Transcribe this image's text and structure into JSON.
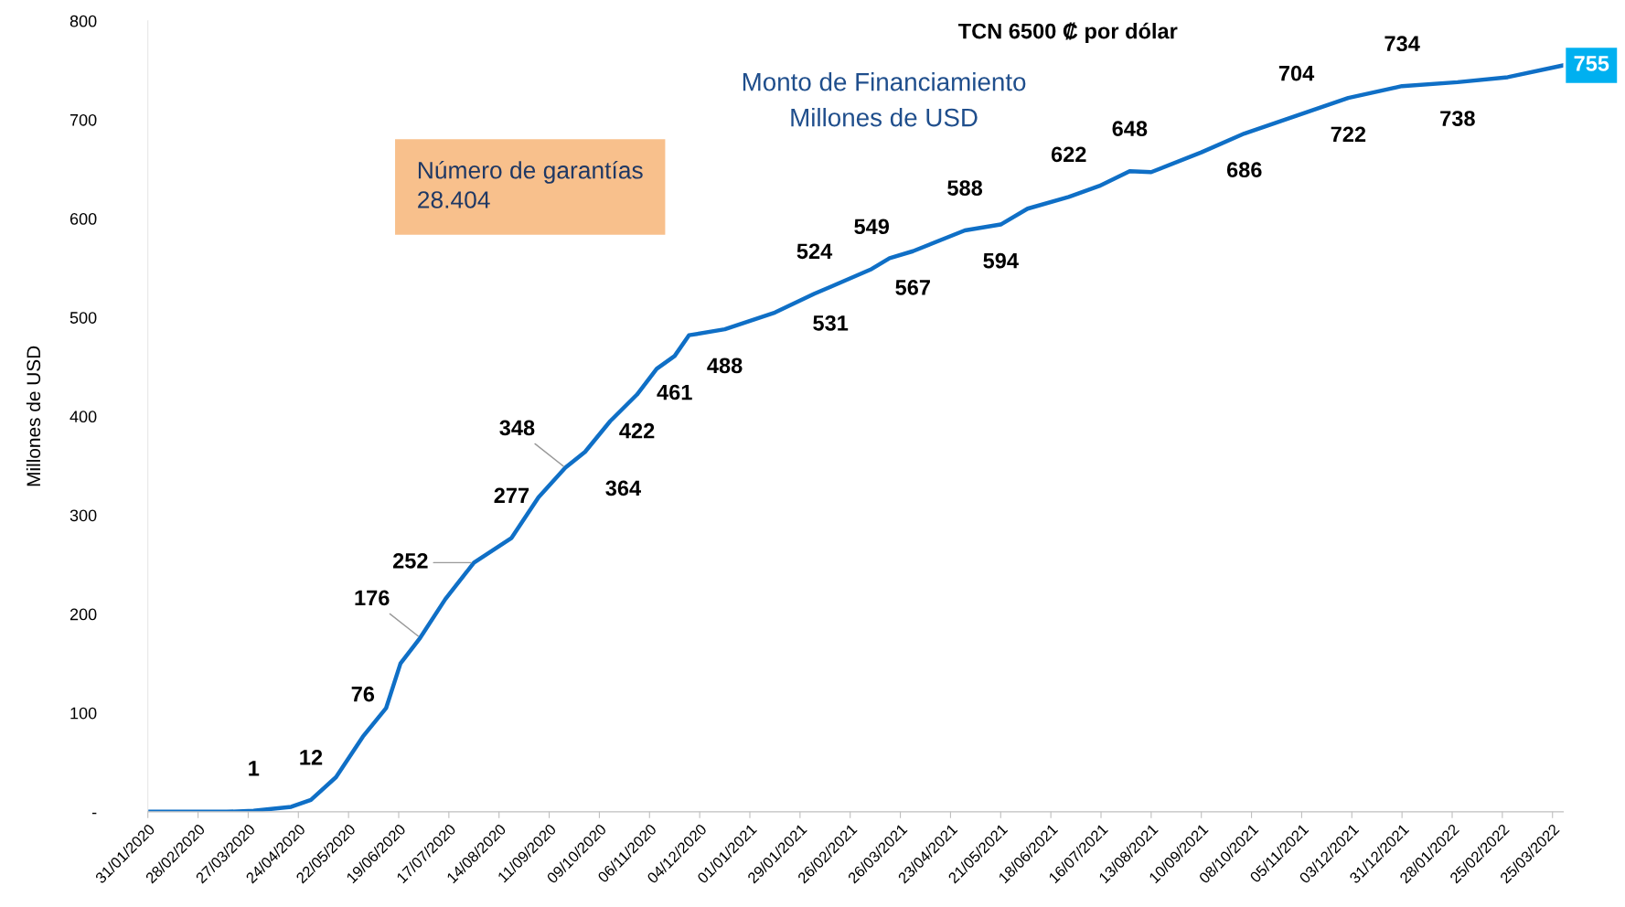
{
  "chart_data": {
    "type": "line",
    "title": "Monto de Financiamiento",
    "subtitle": "Millones de USD",
    "ylabel": "Millones de USD",
    "annotations": [
      "TCN 6500 ₡ por dólar",
      "Número de garantías\n28.404"
    ],
    "x": [
      "2020-01-31",
      "2020-03-15",
      "2020-03-30",
      "2020-04-20",
      "2020-05-01",
      "2020-05-15",
      "2020-05-30",
      "2020-06-12",
      "2020-06-20",
      "2020-07-01",
      "2020-07-15",
      "2020-07-31",
      "2020-08-21",
      "2020-09-05",
      "2020-09-20",
      "2020-10-01",
      "2020-10-15",
      "2020-10-30",
      "2020-11-10",
      "2020-11-20",
      "2020-11-28",
      "2020-12-18",
      "2021-01-15",
      "2021-02-06",
      "2021-02-15",
      "2021-03-10",
      "2021-03-20",
      "2021-04-02",
      "2021-05-01",
      "2021-05-21",
      "2021-06-05",
      "2021-06-28",
      "2021-07-15",
      "2021-08-01",
      "2021-08-13",
      "2021-09-10",
      "2021-10-04",
      "2021-11-02",
      "2021-12-01",
      "2021-12-31",
      "2022-01-31",
      "2022-02-28",
      "2022-03-31"
    ],
    "series": [
      {
        "color": "#0f6fc6",
        "values": [
          0,
          0,
          1,
          5,
          12,
          35,
          76,
          105,
          150,
          176,
          215,
          252,
          277,
          318,
          348,
          364,
          395,
          422,
          448,
          461,
          482,
          488,
          505,
          524,
          531,
          549,
          560,
          567,
          588,
          594,
          610,
          622,
          633,
          648,
          647,
          667,
          686,
          704,
          722,
          734,
          738,
          743,
          755
        ],
        "value_labels": [
          null,
          null,
          "1",
          null,
          "12",
          null,
          "76",
          null,
          null,
          "176",
          null,
          "252",
          "277",
          null,
          "348",
          "364",
          null,
          "422",
          null,
          "461",
          null,
          "488",
          null,
          "524",
          "531",
          "549",
          null,
          "567",
          "588",
          "594",
          null,
          "622",
          null,
          "648",
          null,
          null,
          "686",
          "704",
          "722",
          "734",
          "738",
          null,
          "755"
        ]
      }
    ],
    "xlim": [
      "2020-01-31",
      "2022-03-31"
    ],
    "xticks": [
      {
        "value": "2020-01-31",
        "label": "31/01/2020"
      },
      {
        "value": "2020-02-28",
        "label": "28/02/2020"
      },
      {
        "value": "2020-03-27",
        "label": "27/03/2020"
      },
      {
        "value": "2020-04-24",
        "label": "24/04/2020"
      },
      {
        "value": "2020-05-22",
        "label": "22/05/2020"
      },
      {
        "value": "2020-06-19",
        "label": "19/06/2020"
      },
      {
        "value": "2020-07-17",
        "label": "17/07/2020"
      },
      {
        "value": "2020-08-14",
        "label": "14/08/2020"
      },
      {
        "value": "2020-09-11",
        "label": "11/09/2020"
      },
      {
        "value": "2020-10-09",
        "label": "09/10/2020"
      },
      {
        "value": "2020-11-06",
        "label": "06/11/2020"
      },
      {
        "value": "2020-12-04",
        "label": "04/12/2020"
      },
      {
        "value": "2021-01-01",
        "label": "01/01/2021"
      },
      {
        "value": "2021-01-29",
        "label": "29/01/2021"
      },
      {
        "value": "2021-02-26",
        "label": "26/02/2021"
      },
      {
        "value": "2021-03-26",
        "label": "26/03/2021"
      },
      {
        "value": "2021-04-23",
        "label": "23/04/2021"
      },
      {
        "value": "2021-05-21",
        "label": "21/05/2021"
      },
      {
        "value": "2021-06-18",
        "label": "18/06/2021"
      },
      {
        "value": "2021-07-16",
        "label": "16/07/2021"
      },
      {
        "value": "2021-08-13",
        "label": "13/08/2021"
      },
      {
        "value": "2021-09-10",
        "label": "10/09/2021"
      },
      {
        "value": "2021-10-08",
        "label": "08/10/2021"
      },
      {
        "value": "2021-11-05",
        "label": "05/11/2021"
      },
      {
        "value": "2021-12-03",
        "label": "03/12/2021"
      },
      {
        "value": "2021-12-31",
        "label": "31/12/2021"
      },
      {
        "value": "2022-01-28",
        "label": "28/01/2022"
      },
      {
        "value": "2022-02-25",
        "label": "25/02/2022"
      },
      {
        "value": "2022-03-25",
        "label": "25/03/2022"
      }
    ],
    "ylim": [
      0,
      800
    ],
    "yticks": [
      {
        "value": 0,
        "label": "-"
      },
      100,
      200,
      300,
      400,
      500,
      600,
      700,
      800
    ],
    "grid": false,
    "legend": false,
    "marker": "none",
    "line_style": "solid"
  }
}
